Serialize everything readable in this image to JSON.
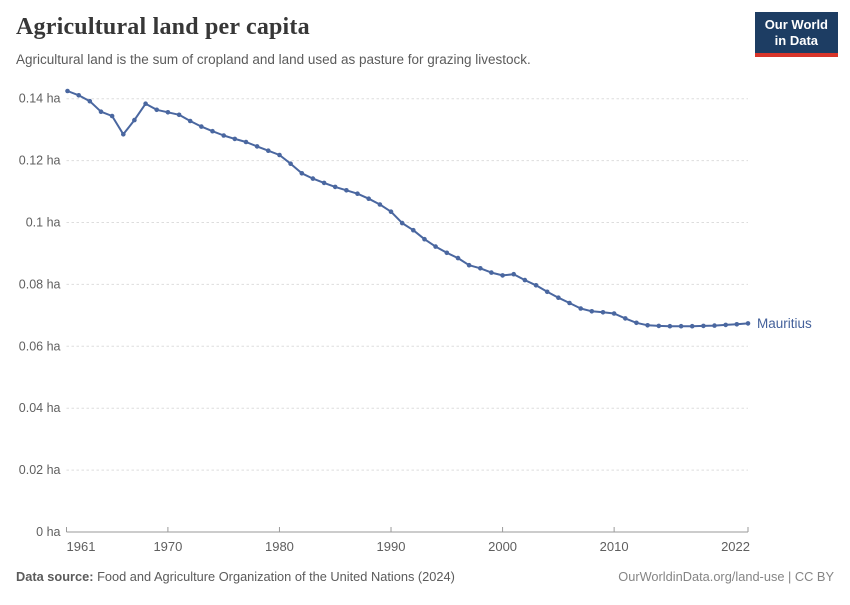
{
  "header": {
    "title": "Agricultural land per capita",
    "subtitle": "Agricultural land is the sum of cropland and land used as pasture for grazing livestock.",
    "logo": {
      "line1": "Our World",
      "line2": "in Data"
    }
  },
  "footer": {
    "source_label": "Data source:",
    "source_text": " Food and Agriculture Organization of the United Nations (2024)",
    "right_text": "OurWorldinData.org/land-use | CC BY"
  },
  "colors": {
    "line": "#4a67a0",
    "entity_label": "#44619b",
    "logo_bg": "#1d3d63",
    "logo_stripe": "#d8352a",
    "grid": "#dddddd",
    "axis": "#9a9a9a",
    "tick_text": "#5f5f5f",
    "title_text": "#373737",
    "subtitle_text": "#5b5b5b"
  },
  "chart_data": {
    "type": "line",
    "title": "Agricultural land per capita",
    "unit": "ha",
    "xlabel": "",
    "ylabel": "",
    "xlim": [
      1961,
      2022
    ],
    "ylim": [
      0,
      0.145
    ],
    "grid": "dashed horizontal gridlines",
    "legend_position": "end-of-line label",
    "x_ticks": [
      1961,
      1970,
      1980,
      1990,
      2000,
      2010,
      2022
    ],
    "y_ticks": [
      0,
      0.02,
      0.04,
      0.06,
      0.08,
      0.1,
      0.12,
      0.14
    ],
    "y_tick_labels": [
      "0 ha",
      "0.02 ha",
      "0.04 ha",
      "0.06 ha",
      "0.08 ha",
      "0.1 ha",
      "0.12 ha",
      "0.14 ha"
    ],
    "series": [
      {
        "name": "Mauritius",
        "x": [
          1961,
          1962,
          1963,
          1964,
          1965,
          1966,
          1967,
          1968,
          1969,
          1970,
          1971,
          1972,
          1973,
          1974,
          1975,
          1976,
          1977,
          1978,
          1979,
          1980,
          1981,
          1982,
          1983,
          1984,
          1985,
          1986,
          1987,
          1988,
          1989,
          1990,
          1991,
          1992,
          1993,
          1994,
          1995,
          1996,
          1997,
          1998,
          1999,
          2000,
          2001,
          2002,
          2003,
          2004,
          2005,
          2006,
          2007,
          2008,
          2009,
          2010,
          2011,
          2012,
          2013,
          2014,
          2015,
          2016,
          2017,
          2018,
          2019,
          2020,
          2021,
          2022
        ],
        "values": [
          0.1425,
          0.1411,
          0.1392,
          0.1358,
          0.1344,
          0.1285,
          0.1331,
          0.1384,
          0.1364,
          0.1356,
          0.1348,
          0.1328,
          0.131,
          0.1295,
          0.1281,
          0.127,
          0.126,
          0.1246,
          0.1232,
          0.1218,
          0.119,
          0.1159,
          0.1142,
          0.1128,
          0.1115,
          0.1104,
          0.1093,
          0.1077,
          0.1058,
          0.1035,
          0.0998,
          0.0975,
          0.0946,
          0.0922,
          0.0902,
          0.0885,
          0.0862,
          0.0852,
          0.0838,
          0.0829,
          0.0833,
          0.0814,
          0.0797,
          0.0776,
          0.0757,
          0.074,
          0.0722,
          0.0713,
          0.071,
          0.0706,
          0.069,
          0.0676,
          0.0668,
          0.0666,
          0.0665,
          0.0665,
          0.0665,
          0.0666,
          0.0667,
          0.0669,
          0.0671,
          0.0674
        ]
      }
    ]
  }
}
